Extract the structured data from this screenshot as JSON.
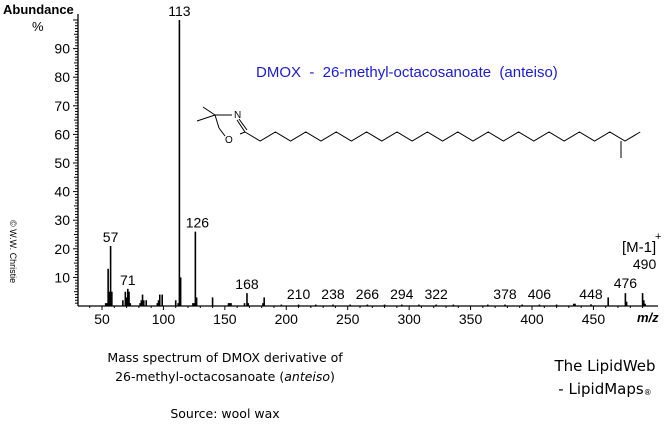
{
  "chart_data": {
    "type": "bar",
    "title": "DMOX  -  26-methyl-octacosanoate  (anteiso)",
    "xlabel": "m/z",
    "ylabel": "Abundance %",
    "xlim": [
      35,
      500
    ],
    "ylim": [
      0,
      100
    ],
    "x_ticks": [
      50,
      100,
      150,
      200,
      250,
      300,
      350,
      400,
      450
    ],
    "y_ticks": [
      10,
      20,
      30,
      40,
      50,
      60,
      70,
      80,
      90
    ],
    "peaks": [
      {
        "mz": 53,
        "abundance": 1
      },
      {
        "mz": 54,
        "abundance": 1
      },
      {
        "mz": 55,
        "abundance": 13
      },
      {
        "mz": 56,
        "abundance": 5
      },
      {
        "mz": 57,
        "abundance": 21
      },
      {
        "mz": 58,
        "abundance": 5
      },
      {
        "mz": 67,
        "abundance": 2
      },
      {
        "mz": 69,
        "abundance": 5
      },
      {
        "mz": 70,
        "abundance": 3
      },
      {
        "mz": 71,
        "abundance": 6
      },
      {
        "mz": 72,
        "abundance": 5
      },
      {
        "mz": 73,
        "abundance": 1
      },
      {
        "mz": 81,
        "abundance": 1
      },
      {
        "mz": 82,
        "abundance": 2
      },
      {
        "mz": 83,
        "abundance": 4
      },
      {
        "mz": 84,
        "abundance": 2
      },
      {
        "mz": 86,
        "abundance": 2
      },
      {
        "mz": 95,
        "abundance": 1
      },
      {
        "mz": 96,
        "abundance": 2
      },
      {
        "mz": 97,
        "abundance": 4
      },
      {
        "mz": 99,
        "abundance": 4
      },
      {
        "mz": 110,
        "abundance": 2
      },
      {
        "mz": 112,
        "abundance": 1
      },
      {
        "mz": 113,
        "abundance": 100
      },
      {
        "mz": 114,
        "abundance": 10
      },
      {
        "mz": 124,
        "abundance": 1
      },
      {
        "mz": 125,
        "abundance": 1
      },
      {
        "mz": 126,
        "abundance": 26
      },
      {
        "mz": 127,
        "abundance": 3
      },
      {
        "mz": 140,
        "abundance": 3
      },
      {
        "mz": 153,
        "abundance": 1
      },
      {
        "mz": 154,
        "abundance": 1
      },
      {
        "mz": 155,
        "abundance": 1
      },
      {
        "mz": 166,
        "abundance": 1
      },
      {
        "mz": 168,
        "abundance": 4.5
      },
      {
        "mz": 169,
        "abundance": 1
      },
      {
        "mz": 181,
        "abundance": 1
      },
      {
        "mz": 182,
        "abundance": 3
      },
      {
        "mz": 196,
        "abundance": 0.5
      },
      {
        "mz": 210,
        "abundance": 0.5
      },
      {
        "mz": 224,
        "abundance": 0.5
      },
      {
        "mz": 238,
        "abundance": 0.5
      },
      {
        "mz": 252,
        "abundance": 0.5
      },
      {
        "mz": 266,
        "abundance": 0.5
      },
      {
        "mz": 280,
        "abundance": 0.5
      },
      {
        "mz": 294,
        "abundance": 0.5
      },
      {
        "mz": 308,
        "abundance": 0.5
      },
      {
        "mz": 322,
        "abundance": 0.5
      },
      {
        "mz": 336,
        "abundance": 0.5
      },
      {
        "mz": 364,
        "abundance": 0.5
      },
      {
        "mz": 378,
        "abundance": 0.5
      },
      {
        "mz": 392,
        "abundance": 0.5
      },
      {
        "mz": 406,
        "abundance": 0.5
      },
      {
        "mz": 420,
        "abundance": 0.5
      },
      {
        "mz": 434,
        "abundance": 0.8
      },
      {
        "mz": 435,
        "abundance": 0.8
      },
      {
        "mz": 448,
        "abundance": 0.6
      },
      {
        "mz": 462,
        "abundance": 3
      },
      {
        "mz": 476,
        "abundance": 4.5
      },
      {
        "mz": 477,
        "abundance": 1.5
      },
      {
        "mz": 490,
        "abundance": 4.5
      },
      {
        "mz": 491,
        "abundance": 2
      },
      {
        "mz": 492,
        "abundance": 0.8
      }
    ],
    "annotations": [
      {
        "text": "113",
        "mz": 113,
        "abundance": 100
      },
      {
        "text": "57",
        "mz": 57,
        "abundance": 21
      },
      {
        "text": "71",
        "mz": 71,
        "abundance": 6
      },
      {
        "text": "126",
        "mz": 126,
        "abundance": 26
      },
      {
        "text": "168",
        "mz": 168,
        "abundance": 4.5
      },
      {
        "text": "210",
        "mz": 210,
        "abundance": 0.5
      },
      {
        "text": "238",
        "mz": 238,
        "abundance": 0.5
      },
      {
        "text": "266",
        "mz": 266,
        "abundance": 0.5
      },
      {
        "text": "294",
        "mz": 294,
        "abundance": 0.5
      },
      {
        "text": "322",
        "mz": 322,
        "abundance": 0.5
      },
      {
        "text": "378",
        "mz": 378,
        "abundance": 0.5
      },
      {
        "text": "406",
        "mz": 406,
        "abundance": 0.5
      },
      {
        "text": "448",
        "mz": 448,
        "abundance": 0.6
      },
      {
        "text": "476",
        "mz": 476,
        "abundance": 4.5
      },
      {
        "text": "490",
        "mz": 490,
        "abundance": 4.5
      },
      {
        "text": "[M-1]+",
        "mz": 490,
        "abundance": 4.5
      }
    ]
  },
  "header": {
    "ylabel": "Abundance",
    "ylabel_unit": "%",
    "title": "DMOX  -  26-methyl-octacosanoate  (anteiso)"
  },
  "structure": {
    "atom_n": "N",
    "atom_o": "O"
  },
  "molecular_ion_label": "[M-1]",
  "molecular_ion_sup": "+",
  "xaxis_label": "m/z",
  "copyright": "© W.W. Christie",
  "caption": {
    "line1": "Mass spectrum of DMOX derivative of",
    "line2_prefix": "26-methyl-octacosanoate (",
    "line2_italic": "anteiso",
    "line2_suffix": ")",
    "source": "Source: wool wax"
  },
  "brand": {
    "line1": "The LipidWeb",
    "line2": "- LipidMaps",
    "mark": "®"
  },
  "colors": {
    "title": "#1a1ad8",
    "axis": "#000000",
    "peaks": "#000000"
  }
}
